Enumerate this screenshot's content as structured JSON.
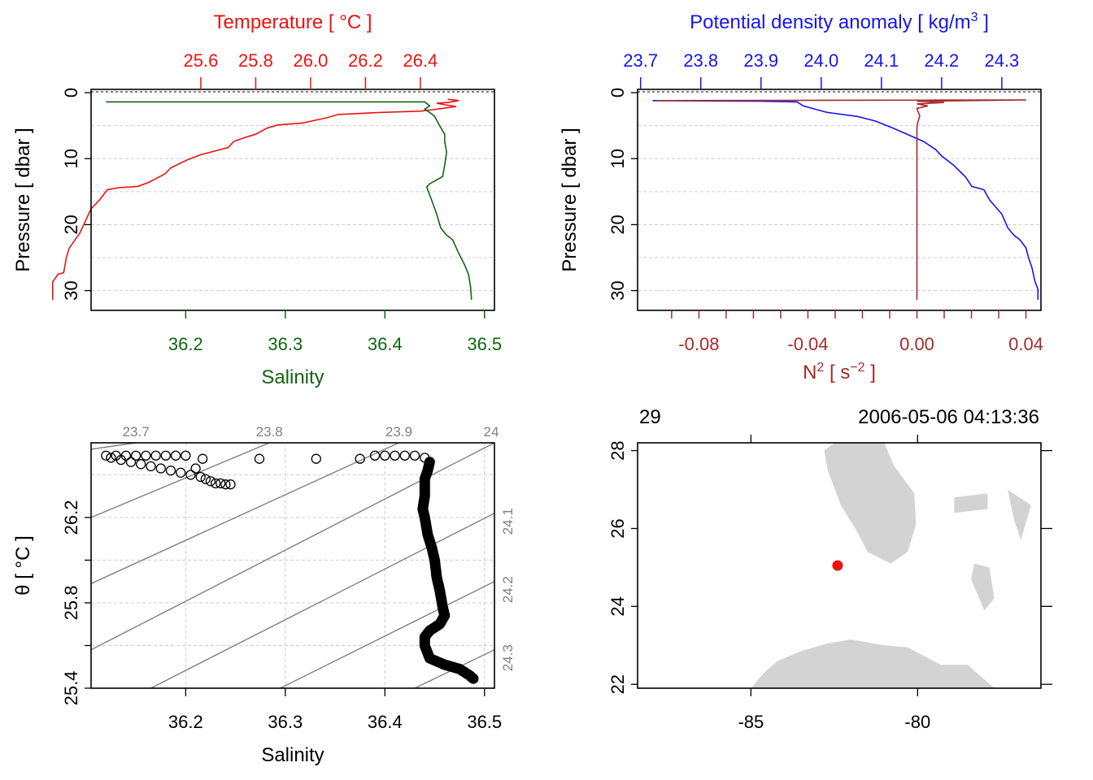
{
  "colors": {
    "temperature": "#ee1111",
    "salinity": "#106610",
    "density": "#1515ee",
    "n2": "#a52a2a",
    "frame": "#000000",
    "grid": "#cccccc",
    "isopycnal": "#808080",
    "land": "#d3d3d3",
    "station": "#ee1111"
  },
  "chart_data": [
    {
      "id": "panel-temperature-salinity-profile",
      "type": "line",
      "title": "Temperature [ °C ]",
      "xlabel_top": "Temperature [ °C ]",
      "xlabel_bottom": "Salinity",
      "ylabel": "Pressure [ dbar ]",
      "ylim": [
        33,
        -0.5
      ],
      "y_ticks": [
        0,
        10,
        20,
        30
      ],
      "y_tick_labels": [
        "0",
        "10",
        "20",
        "30"
      ],
      "grid_y": [
        5,
        10,
        15,
        20,
        25,
        30
      ],
      "temperature_axis": {
        "range": [
          25.2,
          26.67
        ],
        "ticks": [
          25.6,
          25.8,
          26.0,
          26.2,
          26.4
        ],
        "tick_labels": [
          "25.6",
          "25.8",
          "26.0",
          "26.2",
          "26.4"
        ]
      },
      "salinity_axis": {
        "range": [
          36.105,
          36.51
        ],
        "ticks": [
          36.2,
          36.3,
          36.4,
          36.5
        ],
        "tick_labels": [
          "36.2",
          "36.3",
          "36.4",
          "36.5"
        ]
      },
      "series": [
        {
          "name": "Temperature",
          "axis": "temperature",
          "points": [
            [
              26.5,
              1.0
            ],
            [
              26.54,
              1.2
            ],
            [
              26.5,
              1.5
            ],
            [
              26.46,
              1.6
            ],
            [
              26.5,
              1.9
            ],
            [
              26.53,
              2.1
            ],
            [
              26.48,
              2.4
            ],
            [
              26.4,
              2.8
            ],
            [
              26.25,
              3.0
            ],
            [
              26.1,
              3.3
            ],
            [
              26.06,
              3.8
            ],
            [
              25.97,
              4.6
            ],
            [
              25.88,
              4.9
            ],
            [
              25.84,
              5.4
            ],
            [
              25.8,
              6.3
            ],
            [
              25.76,
              6.8
            ],
            [
              25.72,
              7.4
            ],
            [
              25.7,
              8.3
            ],
            [
              25.6,
              9.4
            ],
            [
              25.55,
              10.2
            ],
            [
              25.49,
              11.4
            ],
            [
              25.47,
              12.3
            ],
            [
              25.41,
              13.6
            ],
            [
              25.37,
              14.2
            ],
            [
              25.3,
              14.4
            ],
            [
              25.26,
              14.7
            ],
            [
              25.23,
              16.3
            ],
            [
              25.2,
              17.6
            ],
            [
              25.18,
              19.4
            ],
            [
              25.16,
              21.2
            ],
            [
              25.14,
              22.4
            ],
            [
              25.12,
              23.6
            ],
            [
              25.11,
              25.0
            ],
            [
              25.1,
              27.3
            ],
            [
              25.08,
              27.5
            ],
            [
              25.06,
              28.7
            ],
            [
              25.06,
              31.4
            ]
          ]
        },
        {
          "name": "Salinity",
          "axis": "salinity",
          "points": [
            [
              36.12,
              1.4
            ],
            [
              36.44,
              1.4
            ],
            [
              36.445,
              2.0
            ],
            [
              36.44,
              2.5
            ],
            [
              36.445,
              3.0
            ],
            [
              36.45,
              3.6
            ],
            [
              36.455,
              5.0
            ],
            [
              36.46,
              6.3
            ],
            [
              36.46,
              7.4
            ],
            [
              36.462,
              9.0
            ],
            [
              36.46,
              11.0
            ],
            [
              36.458,
              12.7
            ],
            [
              36.45,
              13.4
            ],
            [
              36.445,
              13.8
            ],
            [
              36.442,
              14.3
            ],
            [
              36.447,
              16.3
            ],
            [
              36.452,
              18.4
            ],
            [
              36.456,
              20.5
            ],
            [
              36.462,
              21.6
            ],
            [
              36.468,
              22.3
            ],
            [
              36.474,
              24.3
            ],
            [
              36.48,
              26.1
            ],
            [
              36.484,
              27.6
            ],
            [
              36.486,
              29.4
            ],
            [
              36.487,
              31.4
            ]
          ]
        }
      ]
    },
    {
      "id": "panel-density-n2-profile",
      "type": "line",
      "title": "Potential density anomaly [ kg/m3 ]",
      "xlabel_top": "Potential density anomaly [ kg/m",
      "xlabel_top_sup": "3",
      "xlabel_top_end": " ]",
      "xlabel_bottom": "N",
      "xlabel_bottom_sup": "2",
      "xlabel_bottom_mid": " [ s",
      "xlabel_bottom_sup2": "−2",
      "xlabel_bottom_end": " ]",
      "ylabel": "Pressure [ dbar ]",
      "ylim": [
        33,
        -0.5
      ],
      "y_ticks": [
        0,
        10,
        20,
        30
      ],
      "y_tick_labels": [
        "0",
        "10",
        "20",
        "30"
      ],
      "grid_y": [
        5,
        10,
        15,
        20,
        25,
        30
      ],
      "density_axis": {
        "range": [
          23.695,
          24.365
        ],
        "ticks": [
          23.7,
          23.8,
          23.9,
          24.0,
          24.1,
          24.2,
          24.3
        ],
        "tick_labels": [
          "23.7",
          "23.8",
          "23.9",
          "24.0",
          "24.1",
          "24.2",
          "24.3"
        ]
      },
      "n2_axis": {
        "range": [
          -0.1025,
          0.0455
        ],
        "ticks": [
          -0.09,
          -0.08,
          -0.07,
          -0.06,
          -0.05,
          -0.04,
          -0.03,
          -0.02,
          -0.01,
          0.0,
          0.01,
          0.02,
          0.03,
          0.04
        ],
        "tick_labels": [
          "-0.08",
          "-0.04",
          "0.00",
          "0.04"
        ],
        "labeled_ticks": [
          -0.08,
          -0.04,
          0.0,
          0.04
        ]
      },
      "series": [
        {
          "name": "Potential density anomaly",
          "axis": "density",
          "points": [
            [
              23.72,
              1.2
            ],
            [
              23.9,
              1.3
            ],
            [
              23.96,
              1.4
            ],
            [
              23.97,
              2.0
            ],
            [
              23.99,
              2.5
            ],
            [
              24.01,
              3.0
            ],
            [
              24.06,
              3.6
            ],
            [
              24.09,
              4.3
            ],
            [
              24.12,
              5.4
            ],
            [
              24.14,
              6.2
            ],
            [
              24.17,
              7.4
            ],
            [
              24.19,
              8.6
            ],
            [
              24.2,
              9.6
            ],
            [
              24.22,
              11.0
            ],
            [
              24.24,
              12.8
            ],
            [
              24.25,
              14.2
            ],
            [
              24.27,
              14.7
            ],
            [
              24.28,
              16.3
            ],
            [
              24.3,
              18.4
            ],
            [
              24.31,
              20.5
            ],
            [
              24.32,
              21.6
            ],
            [
              24.33,
              22.3
            ],
            [
              24.34,
              23.5
            ],
            [
              24.345,
              25.2
            ],
            [
              24.35,
              26.5
            ],
            [
              24.355,
              28.6
            ],
            [
              24.36,
              29.8
            ],
            [
              24.36,
              31.4
            ]
          ]
        },
        {
          "name": "N2",
          "axis": "n2",
          "points": [
            [
              -0.095,
              1.2
            ],
            [
              0.04,
              1.1
            ],
            [
              0.0,
              1.3
            ],
            [
              0.01,
              1.5
            ],
            [
              0.0,
              1.7
            ],
            [
              0.004,
              2.0
            ],
            [
              0.0,
              2.4
            ],
            [
              0.001,
              3.5
            ],
            [
              0.0,
              5.0
            ],
            [
              0.0,
              31.4
            ]
          ]
        }
      ]
    },
    {
      "id": "panel-ts-diagram",
      "type": "scatter",
      "xlabel": "Salinity",
      "ylabel": "θ [ °C ]",
      "xlim": [
        36.105,
        36.51
      ],
      "ylim": [
        25.4,
        26.55
      ],
      "x_ticks": [
        36.2,
        36.3,
        36.4,
        36.5
      ],
      "x_tick_labels": [
        "36.2",
        "36.3",
        "36.4",
        "36.5"
      ],
      "y_ticks": [
        25.4,
        25.8,
        26.2
      ],
      "y_minor_ticks": [
        25.6,
        26.0
      ],
      "y_tick_labels": [
        "25.4",
        "25.8",
        "26.2"
      ],
      "grid_x": [
        36.2,
        36.3,
        36.4,
        36.5
      ],
      "grid_y": [
        25.6,
        25.8,
        26.0,
        26.2,
        26.4
      ],
      "isopycnals": {
        "top_labels": [
          "23.7",
          "23.8",
          "23.9",
          "24"
        ],
        "right_labels": [
          "24.1",
          "24.2",
          "24.3"
        ],
        "lines": [
          {
            "sigma": "23.7",
            "s0": 36.15,
            "t0": 26.55,
            "s1": 36.105,
            "t1": 26.52
          },
          {
            "sigma": "23.8",
            "s0": 36.284,
            "t0": 26.55,
            "s1": 36.105,
            "t1": 26.2
          },
          {
            "sigma": "23.9",
            "s0": 36.414,
            "t0": 26.55,
            "s1": 36.105,
            "t1": 25.89
          },
          {
            "sigma": "24",
            "s0": 36.51,
            "t0": 26.55,
            "s1": 36.105,
            "t1": 25.58
          },
          {
            "sigma": "24.1",
            "s0": 36.51,
            "t0": 26.22,
            "s1": 36.165,
            "t1": 25.4
          },
          {
            "sigma": "24.2",
            "s0": 36.51,
            "t0": 25.9,
            "s1": 36.295,
            "t1": 25.4
          },
          {
            "sigma": "24.3",
            "s0": 36.51,
            "t0": 25.58,
            "s1": 36.43,
            "t1": 25.4
          }
        ]
      },
      "surface_points": [
        [
          36.12,
          26.49
        ],
        [
          36.125,
          26.48
        ],
        [
          36.13,
          26.49
        ],
        [
          36.135,
          26.47
        ],
        [
          36.14,
          26.49
        ],
        [
          36.145,
          26.46
        ],
        [
          36.15,
          26.49
        ],
        [
          36.155,
          26.45
        ],
        [
          36.16,
          26.49
        ],
        [
          36.165,
          26.44
        ],
        [
          36.17,
          26.49
        ],
        [
          36.175,
          26.43
        ],
        [
          36.18,
          26.49
        ],
        [
          36.185,
          26.42
        ],
        [
          36.19,
          26.49
        ],
        [
          36.195,
          26.41
        ],
        [
          36.2,
          26.49
        ],
        [
          36.205,
          26.4
        ],
        [
          36.21,
          26.43
        ],
        [
          36.215,
          26.39
        ],
        [
          36.22,
          26.38
        ],
        [
          36.225,
          26.37
        ],
        [
          36.23,
          26.36
        ],
        [
          36.235,
          26.36
        ],
        [
          36.24,
          26.355
        ],
        [
          36.245,
          26.355
        ],
        [
          36.217,
          26.475
        ],
        [
          36.274,
          26.475
        ],
        [
          36.331,
          26.475
        ],
        [
          36.375,
          26.475
        ],
        [
          36.39,
          26.49
        ],
        [
          36.4,
          26.49
        ],
        [
          36.41,
          26.49
        ],
        [
          36.42,
          26.49
        ],
        [
          36.43,
          26.49
        ],
        [
          36.44,
          26.48
        ]
      ],
      "profile_path": [
        [
          36.445,
          26.46
        ],
        [
          36.443,
          26.42
        ],
        [
          36.44,
          26.38
        ],
        [
          36.44,
          26.3
        ],
        [
          36.438,
          26.24
        ],
        [
          36.44,
          26.2
        ],
        [
          36.443,
          26.12
        ],
        [
          36.447,
          26.06
        ],
        [
          36.45,
          26.0
        ],
        [
          36.452,
          25.92
        ],
        [
          36.455,
          25.86
        ],
        [
          36.458,
          25.78
        ],
        [
          36.46,
          25.74
        ],
        [
          36.455,
          25.7
        ],
        [
          36.445,
          25.67
        ],
        [
          36.44,
          25.64
        ],
        [
          36.44,
          25.6
        ],
        [
          36.445,
          25.54
        ],
        [
          36.46,
          25.51
        ],
        [
          36.475,
          25.49
        ],
        [
          36.485,
          25.46
        ],
        [
          36.49,
          25.44
        ]
      ]
    },
    {
      "id": "panel-map",
      "type": "map",
      "top_left_label": "29",
      "top_right_label": "2006-05-06 04:13:36",
      "xlim": [
        -88.4,
        -76.3
      ],
      "ylim": [
        21.9,
        28.2
      ],
      "x_ticks": [
        -85,
        -80
      ],
      "x_tick_labels": [
        "-85",
        "-80"
      ],
      "y_ticks": [
        22,
        24,
        26,
        28
      ],
      "y_tick_labels": [
        "22",
        "24",
        "26",
        "28"
      ],
      "station": {
        "lon": -82.4,
        "lat": 25.05
      },
      "land": [
        {
          "name": "florida",
          "points": [
            [
              -82.5,
              28.2
            ],
            [
              -81.0,
              28.2
            ],
            [
              -80.7,
              27.6
            ],
            [
              -80.1,
              26.9
            ],
            [
              -80.05,
              26.1
            ],
            [
              -80.3,
              25.4
            ],
            [
              -80.8,
              25.1
            ],
            [
              -81.5,
              25.4
            ],
            [
              -81.8,
              25.9
            ],
            [
              -82.3,
              26.6
            ],
            [
              -82.7,
              27.5
            ],
            [
              -82.8,
              28.0
            ]
          ]
        },
        {
          "name": "cuba",
          "points": [
            [
              -85.0,
              21.9
            ],
            [
              -84.6,
              22.3
            ],
            [
              -84.2,
              22.6
            ],
            [
              -83.5,
              22.85
            ],
            [
              -82.7,
              23.05
            ],
            [
              -82.0,
              23.15
            ],
            [
              -81.0,
              23.0
            ],
            [
              -80.3,
              22.95
            ],
            [
              -79.3,
              22.5
            ],
            [
              -78.5,
              22.5
            ],
            [
              -77.7,
              21.9
            ]
          ]
        },
        {
          "name": "andros",
          "points": [
            [
              -78.3,
              25.1
            ],
            [
              -77.85,
              25.0
            ],
            [
              -77.7,
              24.2
            ],
            [
              -78.0,
              23.9
            ],
            [
              -78.4,
              24.7
            ]
          ]
        },
        {
          "name": "bahamas-north",
          "points": [
            [
              -78.9,
              26.8
            ],
            [
              -77.9,
              26.9
            ],
            [
              -77.9,
              26.5
            ],
            [
              -78.9,
              26.4
            ]
          ]
        },
        {
          "name": "abaco",
          "points": [
            [
              -77.3,
              27.0
            ],
            [
              -76.6,
              26.6
            ],
            [
              -76.9,
              25.7
            ],
            [
              -77.1,
              26.2
            ]
          ]
        }
      ]
    }
  ]
}
